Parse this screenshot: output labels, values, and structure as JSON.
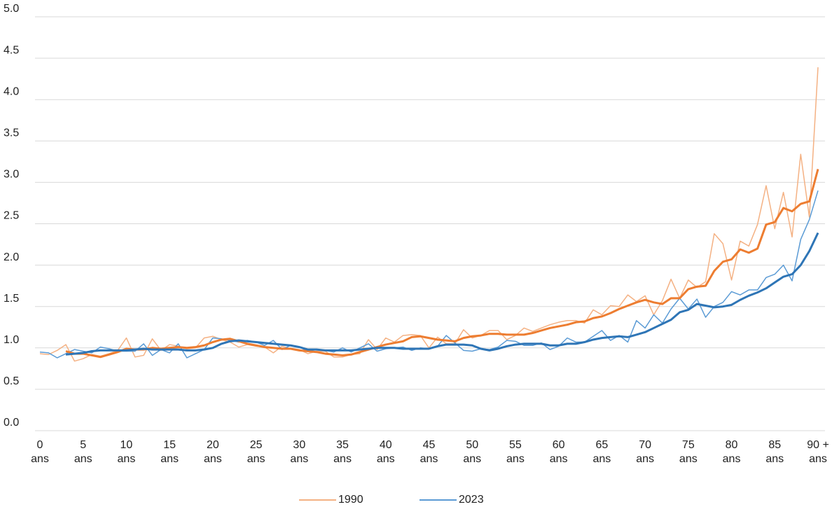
{
  "chart_data": {
    "type": "line",
    "categories": [
      "0\nans",
      null,
      null,
      null,
      null,
      "5\nans",
      null,
      null,
      null,
      null,
      "10\nans",
      null,
      null,
      null,
      null,
      "15\nans",
      null,
      null,
      null,
      null,
      "20\nans",
      null,
      null,
      null,
      null,
      "25\nans",
      null,
      null,
      null,
      null,
      "30\nans",
      null,
      null,
      null,
      null,
      "35\nans",
      null,
      null,
      null,
      null,
      "40\nans",
      null,
      null,
      null,
      null,
      "45\nans",
      null,
      null,
      null,
      null,
      "50\nans",
      null,
      null,
      null,
      null,
      "55\nans",
      null,
      null,
      null,
      null,
      "60\nans",
      null,
      null,
      null,
      null,
      "65\nans",
      null,
      null,
      null,
      null,
      "70\nans",
      null,
      null,
      null,
      null,
      "75\nans",
      null,
      null,
      null,
      null,
      "80\nans",
      null,
      null,
      null,
      null,
      "85\nans",
      null,
      null,
      null,
      null,
      "90 +\nans"
    ],
    "series": [
      {
        "name": "1990",
        "color": "#f4b183",
        "width": 1.5,
        "values": [
          0.93,
          0.92,
          0.97,
          1.04,
          0.84,
          0.87,
          0.92,
          0.9,
          0.93,
          0.97,
          1.12,
          0.89,
          0.91,
          1.11,
          0.97,
          1.04,
          1.02,
          0.99,
          1.0,
          1.12,
          1.14,
          1.1,
          1.07,
          1.01,
          1.04,
          1.02,
          1.01,
          0.94,
          1.02,
          0.99,
          0.98,
          0.93,
          0.96,
          0.96,
          0.89,
          0.89,
          0.92,
          0.93,
          1.1,
          0.98,
          1.12,
          1.07,
          1.15,
          1.16,
          1.15,
          1.0,
          1.13,
          1.05,
          1.05,
          1.22,
          1.12,
          1.15,
          1.21,
          1.21,
          1.1,
          1.15,
          1.24,
          1.2,
          1.24,
          1.28,
          1.31,
          1.33,
          1.33,
          1.3,
          1.46,
          1.4,
          1.51,
          1.5,
          1.64,
          1.56,
          1.63,
          1.4,
          1.57,
          1.83,
          1.6,
          1.82,
          1.73,
          1.8,
          2.38,
          2.26,
          1.82,
          2.29,
          2.23,
          2.49,
          2.96,
          2.44,
          2.88,
          2.34,
          3.34,
          2.58,
          4.39
        ]
      },
      {
        "name": "2023",
        "color": "#5b9bd5",
        "width": 1.5,
        "values": [
          0.95,
          0.94,
          0.88,
          0.93,
          0.98,
          0.96,
          0.94,
          1.01,
          0.99,
          0.96,
          0.96,
          0.96,
          1.05,
          0.91,
          0.98,
          0.94,
          1.05,
          0.88,
          0.93,
          0.98,
          1.12,
          1.11,
          1.09,
          1.07,
          1.09,
          1.07,
          1.03,
          1.09,
          0.98,
          1.03,
          1.01,
          0.96,
          0.98,
          0.97,
          0.95,
          1.0,
          0.95,
          1.0,
          1.05,
          0.96,
          0.99,
          1.0,
          1.01,
          0.97,
          1.0,
          0.99,
          1.02,
          1.15,
          1.06,
          0.97,
          0.96,
          0.99,
          0.98,
          1.01,
          1.09,
          1.08,
          1.03,
          1.03,
          1.06,
          0.98,
          1.02,
          1.12,
          1.07,
          1.07,
          1.14,
          1.21,
          1.09,
          1.15,
          1.07,
          1.33,
          1.24,
          1.4,
          1.3,
          1.47,
          1.6,
          1.47,
          1.59,
          1.37,
          1.5,
          1.55,
          1.68,
          1.64,
          1.7,
          1.7,
          1.85,
          1.89,
          2.0,
          1.81,
          2.31,
          2.55,
          2.9
        ]
      },
      {
        "color": "#ed7d31",
        "width": 3,
        "values": [
          null,
          null,
          null,
          0.96,
          0.93,
          0.93,
          0.91,
          0.89,
          0.92,
          0.95,
          0.99,
          0.98,
          0.98,
          1.0,
          0.99,
          1.0,
          1.01,
          1.0,
          1.01,
          1.03,
          1.07,
          1.1,
          1.11,
          1.08,
          1.05,
          1.03,
          1.01,
          1.0,
          0.99,
          0.99,
          0.97,
          0.96,
          0.95,
          0.93,
          0.92,
          0.91,
          0.92,
          0.95,
          0.98,
          1.01,
          1.04,
          1.06,
          1.08,
          1.13,
          1.14,
          1.12,
          1.1,
          1.09,
          1.08,
          1.12,
          1.14,
          1.15,
          1.17,
          1.17,
          1.16,
          1.16,
          1.16,
          1.18,
          1.21,
          1.24,
          1.26,
          1.28,
          1.31,
          1.32,
          1.36,
          1.38,
          1.42,
          1.47,
          1.51,
          1.55,
          1.58,
          1.55,
          1.53,
          1.6,
          1.6,
          1.71,
          1.74,
          1.75,
          1.93,
          2.04,
          2.07,
          2.19,
          2.15,
          2.2,
          2.49,
          2.52,
          2.69,
          2.65,
          2.74,
          2.77,
          3.16
        ]
      },
      {
        "color": "#2e75b6",
        "width": 3,
        "values": [
          null,
          null,
          null,
          0.92,
          0.93,
          0.94,
          0.96,
          0.97,
          0.97,
          0.97,
          0.97,
          0.98,
          0.99,
          0.98,
          0.98,
          0.98,
          0.98,
          0.97,
          0.97,
          0.98,
          1.0,
          1.05,
          1.08,
          1.09,
          1.08,
          1.07,
          1.06,
          1.05,
          1.04,
          1.03,
          1.01,
          0.98,
          0.98,
          0.97,
          0.97,
          0.97,
          0.97,
          0.98,
          0.99,
          1.0,
          1.0,
          1.0,
          0.99,
          0.99,
          0.99,
          0.99,
          1.02,
          1.04,
          1.04,
          1.04,
          1.03,
          0.99,
          0.97,
          0.99,
          1.02,
          1.04,
          1.05,
          1.05,
          1.05,
          1.03,
          1.03,
          1.05,
          1.05,
          1.07,
          1.1,
          1.12,
          1.13,
          1.14,
          1.13,
          1.16,
          1.19,
          1.24,
          1.29,
          1.34,
          1.43,
          1.46,
          1.53,
          1.51,
          1.49,
          1.5,
          1.52,
          1.58,
          1.63,
          1.67,
          1.72,
          1.79,
          1.86,
          1.89,
          2.0,
          2.17,
          2.39
        ]
      }
    ],
    "ylim": [
      0,
      5
    ],
    "yticks": [
      {
        "value": 0,
        "label": "0.0"
      },
      0.5,
      {
        "value": 1,
        "label": "1.0"
      },
      1.5,
      {
        "value": 2,
        "label": "2.0"
      },
      2.5,
      {
        "value": 3,
        "label": "3.0"
      },
      3.5,
      {
        "value": 4,
        "label": "4.0"
      },
      4.5,
      {
        "value": 5,
        "label": "5.0"
      }
    ],
    "grid": true,
    "legend": "bottom"
  }
}
